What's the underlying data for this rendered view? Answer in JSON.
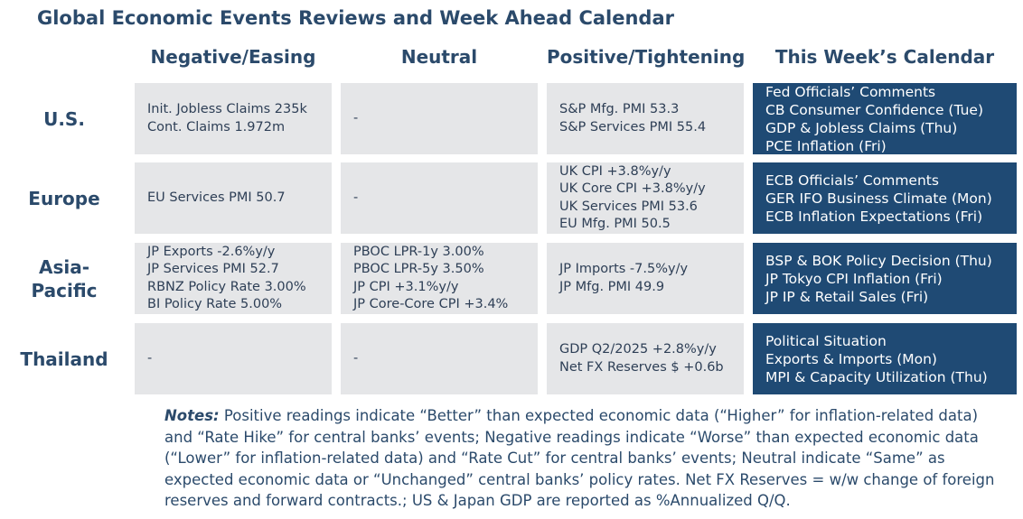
{
  "title": "Global Economic Events Reviews and Week Ahead Calendar",
  "columns": [
    "Negative/Easing",
    "Neutral",
    "Positive/Tightening",
    "This Week’s Calendar"
  ],
  "rows": [
    {
      "region": "U.S.",
      "negative": [
        "Init. Jobless Claims 235k",
        "Cont. Claims 1.972m"
      ],
      "neutral": [
        "-"
      ],
      "positive": [
        "S&P Mfg. PMI 53.3",
        "S&P Services PMI 55.4"
      ],
      "calendar": [
        "Fed Officials’ Comments",
        "CB Consumer Confidence (Tue)",
        "GDP & Jobless Claims (Thu)",
        "PCE Inflation (Fri)"
      ]
    },
    {
      "region": "Europe",
      "negative": [
        "EU Services PMI 50.7"
      ],
      "neutral": [
        "-"
      ],
      "positive": [
        "UK CPI +3.8%y/y",
        "UK Core CPI +3.8%y/y",
        "UK Services PMI 53.6",
        "EU Mfg. PMI 50.5"
      ],
      "calendar": [
        "ECB Officials’ Comments",
        "GER IFO Business Climate (Mon)",
        "ECB Inflation Expectations (Fri)"
      ]
    },
    {
      "region": "Asia-Pacific",
      "negative": [
        "JP Exports -2.6%y/y",
        "JP Services PMI 52.7",
        "RBNZ Policy Rate 3.00%",
        "BI Policy Rate 5.00%"
      ],
      "neutral": [
        "PBOC LPR-1y 3.00%",
        "PBOC LPR-5y 3.50%",
        "JP CPI +3.1%y/y",
        "JP Core-Core CPI +3.4%"
      ],
      "positive": [
        "JP Imports -7.5%y/y",
        "JP Mfg. PMI 49.9"
      ],
      "calendar": [
        "BSP & BOK Policy Decision (Thu)",
        "JP Tokyo CPI Inflation (Fri)",
        "JP IP & Retail Sales (Fri)"
      ]
    },
    {
      "region": "Thailand",
      "negative": [
        "-"
      ],
      "neutral": [
        "-"
      ],
      "positive": [
        "GDP Q2/2025 +2.8%y/y",
        "Net FX Reserves $ +0.6b"
      ],
      "calendar": [
        "Political Situation",
        "Exports & Imports (Mon)",
        "MPI & Capacity Utilization (Thu)"
      ]
    }
  ],
  "notes": {
    "label": "Notes:",
    "text": " Positive readings indicate “Better” than expected economic data (“Higher” for inflation-related data) and “Rate Hike” for central banks’ events; Negative readings indicate “Worse” than expected economic data (“Lower” for inflation-related data) and “Rate Cut” for central banks’ events; Neutral indicate “Same” as expected economic data or “Unchanged” central banks’ policy rates. Net FX Reserves = w/w change of foreign reserves and forward contracts.; US & Japan GDP are reported as %Annualized Q/Q."
  }
}
